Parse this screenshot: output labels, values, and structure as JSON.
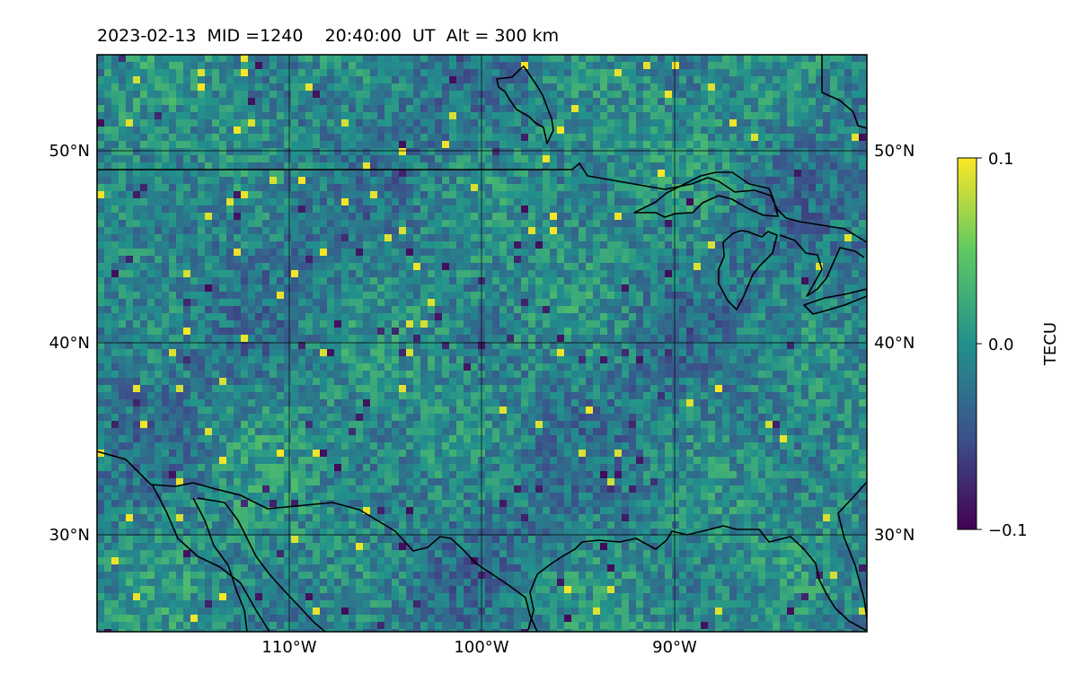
{
  "title": "2023-02-13  MID =1240    20:40:00  UT  Alt = 300 km",
  "map": {
    "lon_range": [
      -120,
      -80
    ],
    "lat_range": [
      25,
      55
    ],
    "lat_ticks": [
      {
        "value": 50,
        "label": "50°N"
      },
      {
        "value": 40,
        "label": "40°N"
      },
      {
        "value": 30,
        "label": "30°N"
      }
    ],
    "lon_ticks": [
      {
        "value": -110,
        "label": "110°W"
      },
      {
        "value": -100,
        "label": "100°W"
      },
      {
        "value": -90,
        "label": "90°W"
      }
    ],
    "grid": true,
    "coastlines": true,
    "borders": true
  },
  "colorbar": {
    "label": "TECU",
    "colormap": "viridis",
    "min": -0.1,
    "max": 0.1,
    "ticks": [
      {
        "value": 0.1,
        "label": "0.1"
      },
      {
        "value": 0.0,
        "label": "0.0"
      },
      {
        "value": -0.1,
        "label": "−0.1"
      }
    ],
    "colors": [
      "#440154",
      "#3b528b",
      "#21918c",
      "#5ec962",
      "#fde725"
    ]
  }
}
